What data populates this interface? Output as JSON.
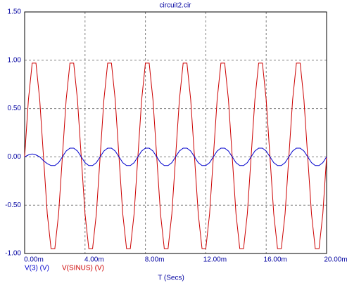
{
  "chart_data": {
    "type": "line",
    "title": "circuit2.cir",
    "x_label": "T (Secs)",
    "x": [
      0,
      0.00025,
      0.0005,
      0.00075,
      0.001,
      0.00125,
      0.0015,
      0.00175,
      0.002,
      0.00225,
      0.0025,
      0.00275,
      0.003,
      0.00325,
      0.0035,
      0.00375,
      0.004,
      0.00425,
      0.0045,
      0.00475,
      0.005,
      0.00525,
      0.0055,
      0.00575,
      0.006,
      0.00625,
      0.0065,
      0.00675,
      0.007,
      0.00725,
      0.0075,
      0.00775,
      0.008,
      0.00825,
      0.0085,
      0.00875,
      0.009,
      0.00925,
      0.0095,
      0.00975,
      0.01,
      0.01025,
      0.0105,
      0.01075,
      0.011,
      0.01125,
      0.0115,
      0.01175,
      0.012,
      0.01225,
      0.0125,
      0.01275,
      0.013,
      0.01325,
      0.0135,
      0.01375,
      0.014,
      0.01425,
      0.0145,
      0.01475,
      0.015,
      0.01525,
      0.0155,
      0.01575,
      0.016,
      0.01625,
      0.0165,
      0.01675,
      0.017,
      0.01725,
      0.0175,
      0.01775,
      0.018,
      0.01825,
      0.0185,
      0.01875,
      0.019,
      0.01925,
      0.0195,
      0.01975,
      0.02
    ],
    "series": [
      {
        "name": "V(3) (V)",
        "color": "#0000cc",
        "values": [
          0,
          0.02,
          0.03,
          0.02,
          0,
          -0.04,
          -0.07,
          -0.09,
          -0.09,
          -0.06,
          0,
          0.06,
          0.09,
          0.09,
          0.06,
          0,
          -0.06,
          -0.09,
          -0.09,
          -0.06,
          0,
          0.06,
          0.09,
          0.09,
          0.06,
          0,
          -0.06,
          -0.09,
          -0.09,
          -0.06,
          0,
          0.06,
          0.09,
          0.09,
          0.06,
          0,
          -0.06,
          -0.09,
          -0.09,
          -0.06,
          0,
          0.06,
          0.09,
          0.09,
          0.06,
          0,
          -0.06,
          -0.09,
          -0.09,
          -0.06,
          0,
          0.06,
          0.09,
          0.09,
          0.06,
          0,
          -0.06,
          -0.09,
          -0.09,
          -0.06,
          0,
          0.06,
          0.09,
          0.09,
          0.06,
          0,
          -0.06,
          -0.09,
          -0.09,
          -0.06,
          0,
          0.06,
          0.09,
          0.09,
          0.06,
          0,
          -0.06,
          -0.09,
          -0.09,
          -0.06,
          0
        ]
      },
      {
        "name": "V(SINUS) (V)",
        "color": "#cc0000",
        "values": [
          0,
          0.59,
          0.97,
          0.97,
          0.59,
          0,
          -0.59,
          -0.95,
          -0.95,
          -0.59,
          0,
          0.59,
          0.97,
          0.97,
          0.59,
          0,
          -0.59,
          -0.95,
          -0.95,
          -0.59,
          0,
          0.59,
          0.97,
          0.97,
          0.59,
          0,
          -0.59,
          -0.95,
          -0.95,
          -0.59,
          0,
          0.59,
          0.97,
          0.97,
          0.59,
          0,
          -0.59,
          -0.95,
          -0.95,
          -0.59,
          0,
          0.59,
          0.97,
          0.97,
          0.59,
          0,
          -0.59,
          -0.95,
          -0.95,
          -0.59,
          0,
          0.59,
          0.97,
          0.97,
          0.59,
          0,
          -0.59,
          -0.95,
          -0.95,
          -0.59,
          0,
          0.59,
          0.97,
          0.97,
          0.59,
          0,
          -0.59,
          -0.95,
          -0.95,
          -0.59,
          0,
          0.59,
          0.97,
          0.97,
          0.59,
          0,
          -0.59,
          -0.95,
          -0.95,
          -0.59,
          0
        ]
      }
    ],
    "xlim": [
      0,
      0.02
    ],
    "xticks": [
      {
        "value": 0,
        "label": "0.00m"
      },
      {
        "value": 0.004,
        "label": "4.00m"
      },
      {
        "value": 0.008,
        "label": "8.00m"
      },
      {
        "value": 0.012,
        "label": "12.00m"
      },
      {
        "value": 0.016,
        "label": "16.00m"
      },
      {
        "value": 0.02,
        "label": "20.00m"
      }
    ],
    "ylim": [
      -1,
      1.5
    ],
    "yticks": [
      {
        "value": -1,
        "label": "-1.00"
      },
      {
        "value": -0.5,
        "label": "-0.50"
      },
      {
        "value": 0,
        "label": "0.00"
      },
      {
        "value": 0.5,
        "label": "0.50"
      },
      {
        "value": 1,
        "label": "1.00"
      },
      {
        "value": 1.5,
        "label": "1.50"
      }
    ],
    "grid": true
  }
}
